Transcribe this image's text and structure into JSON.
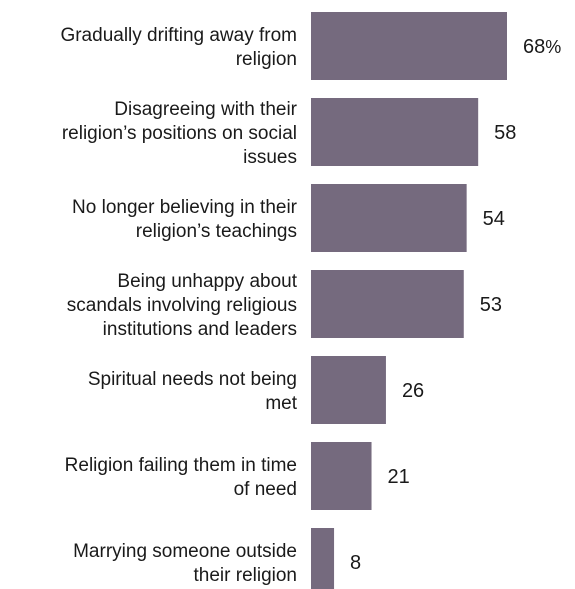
{
  "chart_data": {
    "type": "bar",
    "orientation": "horizontal",
    "categories": [
      [
        "Gradually drifting away from",
        "religion"
      ],
      [
        "Disagreeing with their",
        "religion’s positions on social",
        "issues"
      ],
      [
        "No longer believing in their",
        "religion’s teachings"
      ],
      [
        "Being unhappy about",
        "scandals involving religious",
        "institutions and leaders"
      ],
      [
        "Spiritual needs not being",
        "met"
      ],
      [
        "Religion failing them in time",
        "of need"
      ],
      [
        "Marrying someone outside",
        "their religion"
      ]
    ],
    "values": [
      68,
      58,
      54,
      53,
      26,
      21,
      8
    ],
    "value_labels": [
      "68",
      "58",
      "54",
      "53",
      "26",
      "21",
      "8"
    ],
    "unit_suffix": "%",
    "title": "",
    "xlabel": "",
    "ylabel": "",
    "xlim": [
      0,
      68
    ],
    "grid": false,
    "legend": "none",
    "bar_color": "#756a7e"
  }
}
